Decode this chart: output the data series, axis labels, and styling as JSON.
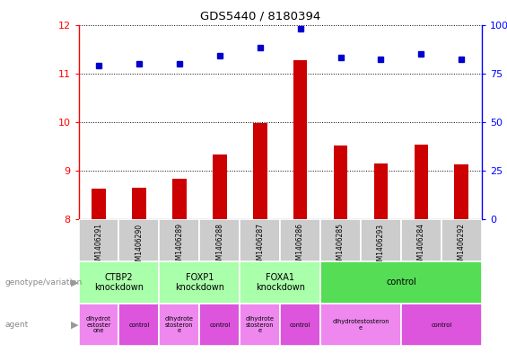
{
  "title": "GDS5440 / 8180394",
  "samples": [
    "GSM1406291",
    "GSM1406290",
    "GSM1406289",
    "GSM1406288",
    "GSM1406287",
    "GSM1406286",
    "GSM1406285",
    "GSM1406293",
    "GSM1406284",
    "GSM1406292"
  ],
  "transformed_count": [
    8.62,
    8.65,
    8.82,
    9.32,
    9.97,
    11.27,
    9.51,
    9.14,
    9.53,
    9.12
  ],
  "percentile_rank": [
    79,
    80,
    80,
    84,
    88,
    98,
    83,
    82,
    85,
    82
  ],
  "bar_color": "#cc0000",
  "dot_color": "#0000cc",
  "ylim_left": [
    8,
    12
  ],
  "ylim_right": [
    0,
    100
  ],
  "yticks_left": [
    8,
    9,
    10,
    11,
    12
  ],
  "yticks_right": [
    0,
    25,
    50,
    75,
    100
  ],
  "genotype_row": [
    {
      "label": "CTBP2\nknockdown",
      "span": [
        0,
        2
      ],
      "color": "#aaffaa"
    },
    {
      "label": "FOXP1\nknockdown",
      "span": [
        2,
        4
      ],
      "color": "#aaffaa"
    },
    {
      "label": "FOXA1\nknockdown",
      "span": [
        4,
        6
      ],
      "color": "#aaffaa"
    },
    {
      "label": "control",
      "span": [
        6,
        10
      ],
      "color": "#55dd55"
    }
  ],
  "agent_row": [
    {
      "label": "dihydrot\nestoster\none",
      "span": [
        0,
        1
      ],
      "color": "#ee88ee"
    },
    {
      "label": "control",
      "span": [
        1,
        2
      ],
      "color": "#dd55dd"
    },
    {
      "label": "dihydrote\nstosteron\ne",
      "span": [
        2,
        3
      ],
      "color": "#ee88ee"
    },
    {
      "label": "control",
      "span": [
        3,
        4
      ],
      "color": "#dd55dd"
    },
    {
      "label": "dihydrote\nstosteron\ne",
      "span": [
        4,
        5
      ],
      "color": "#ee88ee"
    },
    {
      "label": "control",
      "span": [
        5,
        6
      ],
      "color": "#dd55dd"
    },
    {
      "label": "dihydrotestosteron\ne",
      "span": [
        6,
        8
      ],
      "color": "#ee88ee"
    },
    {
      "label": "control",
      "span": [
        8,
        10
      ],
      "color": "#dd55dd"
    }
  ]
}
